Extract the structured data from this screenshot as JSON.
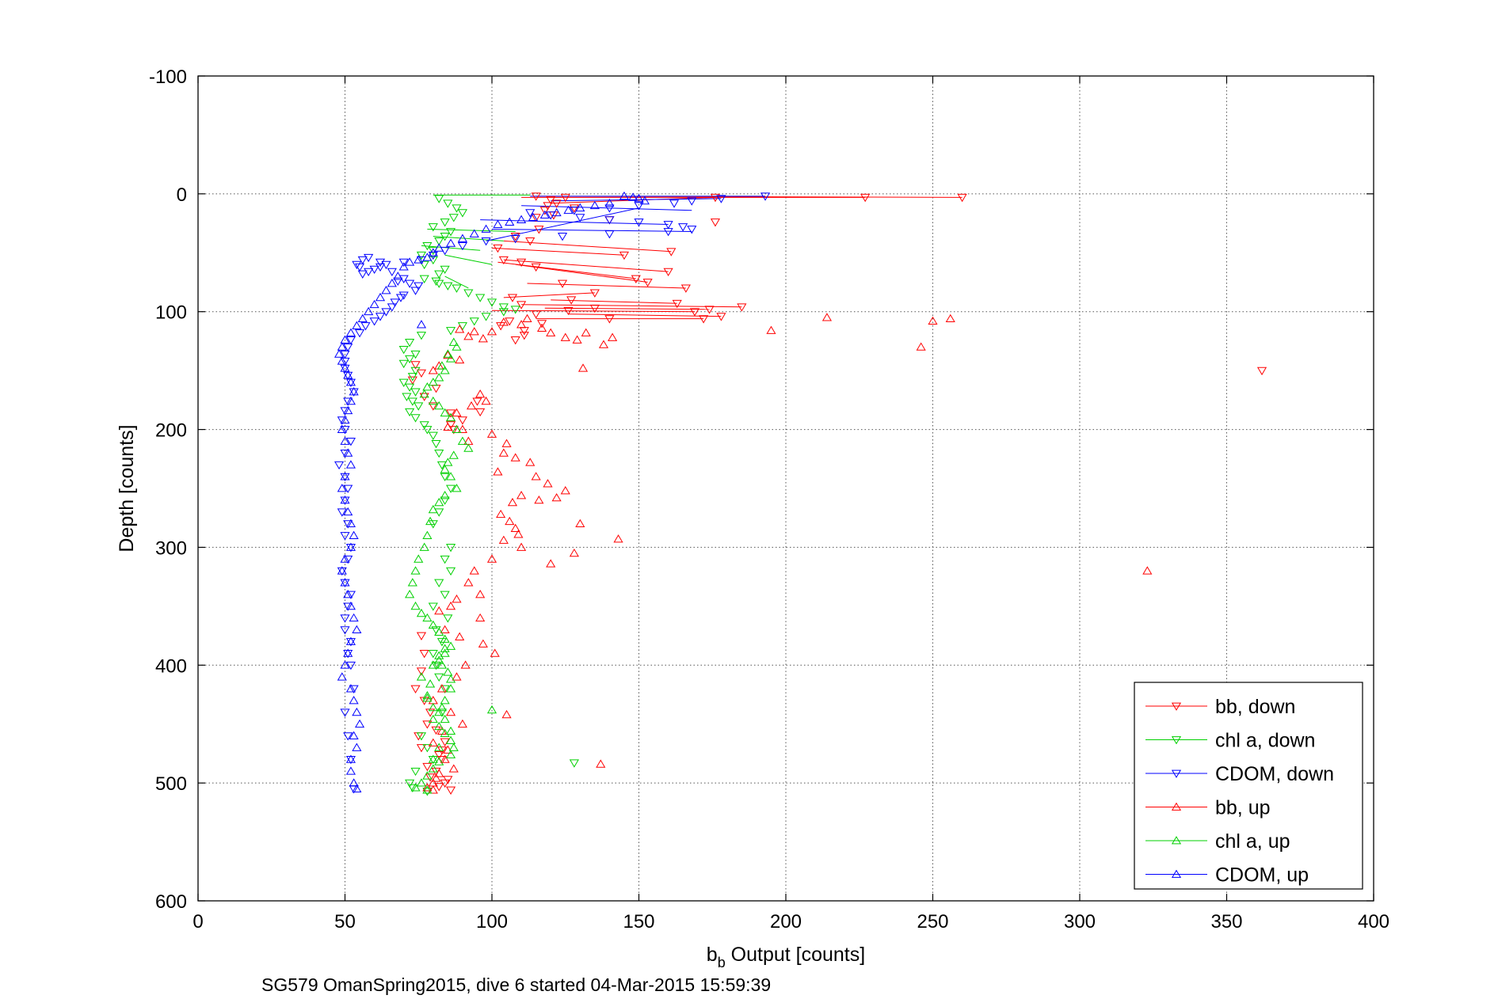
{
  "chart_data": {
    "type": "scatter",
    "title": "",
    "caption": "SG579 OmanSpring2015, dive 6 started 04-Mar-2015 15:59:39",
    "xlabel": {
      "main": "b",
      "sub": "b",
      "rest": " Output [counts]"
    },
    "ylabel": "Depth [counts]",
    "xlim": [
      0,
      400
    ],
    "ylim": [
      -100,
      600
    ],
    "y_reversed": true,
    "grid": true,
    "legend_position": "bottom-right",
    "x_ticks": [
      "0",
      "50",
      "100",
      "150",
      "200",
      "250",
      "300",
      "350",
      "400"
    ],
    "y_ticks": [
      "-100",
      "0",
      "100",
      "200",
      "300",
      "400",
      "500",
      "600"
    ],
    "series": [
      {
        "name": "bb, down",
        "color": "#ff0000",
        "marker": "triangle-down",
        "x": [
          115,
          125,
          120,
          176,
          260,
          227,
          122,
          119,
          128,
          118,
          115,
          121,
          140,
          176,
          116,
          108,
          113,
          102,
          161,
          145,
          104,
          110,
          115,
          160,
          149,
          124,
          153,
          166,
          135,
          107,
          127,
          110,
          135,
          126,
          115,
          140,
          163,
          185,
          174,
          169,
          178,
          172,
          117,
          106,
          103,
          111,
          111,
          108,
          362,
          74,
          76,
          73,
          81,
          77,
          80,
          86,
          90,
          86,
          95,
          96,
          87,
          76,
          77,
          76,
          74,
          77,
          79,
          78,
          81,
          75,
          84,
          76,
          83,
          82,
          83,
          78,
          81,
          79,
          85,
          84,
          82,
          86
        ],
        "y": [
          2,
          3,
          5,
          3,
          3,
          3,
          8,
          10,
          12,
          14,
          20,
          18,
          22,
          24,
          30,
          36,
          40,
          46,
          49,
          52,
          56,
          58,
          62,
          66,
          72,
          76,
          75,
          80,
          84,
          88,
          90,
          94,
          97,
          99,
          102,
          106,
          93,
          96,
          98,
          100,
          104,
          106,
          110,
          108,
          112,
          116,
          120,
          124,
          150,
          145,
          152,
          158,
          165,
          172,
          180,
          186,
          192,
          196,
          176,
          185,
          200,
          375,
          390,
          405,
          420,
          430,
          440,
          450,
          455,
          460,
          465,
          470,
          472,
          476,
          480,
          486,
          490,
          495,
          497,
          500,
          503,
          506
        ]
      },
      {
        "name": "chl a, down",
        "color": "#00d000",
        "marker": "triangle-down",
        "x": [
          82,
          85,
          88,
          90,
          87,
          84,
          80,
          86,
          84,
          82,
          78,
          80,
          76,
          80,
          77,
          84,
          82,
          77,
          81,
          82,
          85,
          88,
          92,
          96,
          100,
          104,
          108,
          104,
          98,
          94,
          90,
          86,
          76,
          72,
          70,
          74,
          72,
          70,
          74,
          73,
          70,
          72,
          74,
          71,
          73,
          75,
          72,
          74,
          77,
          78,
          80,
          81,
          82,
          83,
          84,
          86,
          84,
          82,
          80,
          86,
          84,
          86,
          82,
          84,
          80,
          85,
          81,
          83,
          80,
          81,
          82,
          84,
          83,
          128,
          76,
          78,
          80,
          74,
          72,
          73,
          78
        ],
        "y": [
          4,
          8,
          12,
          16,
          20,
          24,
          28,
          32,
          36,
          40,
          44,
          48,
          52,
          56,
          60,
          64,
          68,
          72,
          74,
          76,
          78,
          80,
          84,
          88,
          92,
          96,
          98,
          100,
          104,
          108,
          112,
          116,
          120,
          126,
          132,
          136,
          140,
          144,
          150,
          155,
          160,
          164,
          168,
          172,
          176,
          180,
          185,
          190,
          196,
          200,
          205,
          212,
          220,
          230,
          240,
          250,
          260,
          270,
          280,
          300,
          310,
          320,
          330,
          340,
          350,
          360,
          370,
          380,
          390,
          400,
          410,
          420,
          440,
          483,
          460,
          470,
          480,
          490,
          500,
          504,
          507
        ]
      },
      {
        "name": "CDOM, down",
        "color": "#0000ff",
        "marker": "triangle-down",
        "x": [
          193,
          178,
          168,
          162,
          150,
          140,
          128,
          113,
          120,
          130,
          140,
          150,
          160,
          165,
          168,
          160,
          140,
          124,
          108,
          98,
          90,
          84,
          80,
          76,
          70,
          64,
          62,
          60,
          58,
          56,
          55,
          54,
          56,
          58,
          62,
          66,
          70,
          68,
          72,
          75,
          74,
          70,
          69,
          67,
          66,
          64,
          62,
          60,
          57,
          55,
          52,
          51,
          50,
          50,
          50,
          51,
          52,
          53,
          51,
          50,
          49,
          50,
          52,
          50,
          48,
          50,
          51,
          50,
          49,
          51,
          50,
          52,
          51,
          49,
          50,
          52,
          51,
          50,
          50,
          52,
          51,
          52,
          53,
          50,
          51,
          52,
          53
        ],
        "y": [
          2,
          4,
          6,
          8,
          10,
          12,
          14,
          16,
          18,
          20,
          22,
          24,
          26,
          28,
          30,
          32,
          34,
          36,
          38,
          40,
          44,
          48,
          52,
          56,
          58,
          60,
          62,
          64,
          66,
          68,
          62,
          60,
          56,
          54,
          58,
          66,
          72,
          74,
          76,
          78,
          82,
          86,
          88,
          92,
          96,
          100,
          104,
          108,
          112,
          118,
          124,
          130,
          136,
          142,
          148,
          154,
          160,
          168,
          176,
          184,
          192,
          200,
          210,
          220,
          230,
          240,
          250,
          260,
          270,
          280,
          290,
          300,
          310,
          320,
          330,
          340,
          350,
          360,
          370,
          380,
          390,
          400,
          420,
          440,
          460,
          480,
          505
        ]
      },
      {
        "name": "bb, up",
        "color": "#ff0000",
        "marker": "triangle-up",
        "x": [
          214,
          250,
          256,
          246,
          195,
          141,
          138,
          132,
          129,
          125,
          120,
          117,
          131,
          110,
          112,
          104,
          100,
          92,
          89,
          94,
          97,
          85,
          89,
          82,
          80,
          96,
          98,
          93,
          88,
          86,
          85,
          90,
          92,
          100,
          105,
          104,
          108,
          113,
          102,
          115,
          119,
          110,
          107,
          122,
          125,
          116,
          103,
          106,
          108,
          109,
          130,
          143,
          128,
          120,
          104,
          110,
          100,
          94,
          92,
          96,
          88,
          86,
          82,
          96,
          84,
          89,
          97,
          101,
          91,
          88,
          83,
          80,
          86,
          90,
          105,
          323,
          83,
          80,
          85,
          84,
          87,
          82,
          81,
          80,
          78,
          80,
          137
        ],
        "y": [
          105,
          108,
          106,
          130,
          116,
          122,
          128,
          118,
          124,
          122,
          118,
          114,
          148,
          111,
          106,
          109,
          117,
          121,
          115,
          117,
          123,
          137,
          141,
          146,
          150,
          170,
          176,
          180,
          186,
          190,
          198,
          200,
          210,
          204,
          212,
          220,
          224,
          228,
          236,
          240,
          246,
          256,
          262,
          258,
          252,
          260,
          272,
          278,
          284,
          289,
          280,
          293,
          305,
          314,
          294,
          300,
          310,
          320,
          330,
          340,
          344,
          350,
          354,
          360,
          370,
          376,
          382,
          390,
          400,
          410,
          420,
          430,
          440,
          450,
          442,
          320,
          456,
          466,
          472,
          480,
          488,
          492,
          496,
          500,
          504,
          506,
          484
        ]
      },
      {
        "name": "chl a, up",
        "color": "#00d000",
        "marker": "triangle-up",
        "x": [
          87,
          88,
          85,
          86,
          83,
          84,
          82,
          80,
          78,
          77,
          80,
          82,
          84,
          86,
          88,
          90,
          92,
          87,
          85,
          84,
          86,
          88,
          84,
          82,
          80,
          79,
          78,
          77,
          75,
          74,
          73,
          72,
          74,
          76,
          78,
          80,
          82,
          84,
          86,
          84,
          82,
          83,
          85,
          86,
          86,
          84,
          83,
          82,
          80,
          82,
          84,
          86,
          87,
          86,
          82,
          80,
          78,
          76,
          74,
          78,
          80,
          82,
          86,
          84,
          80,
          78,
          100,
          79,
          78,
          76,
          80,
          82,
          84
        ],
        "y": [
          126,
          130,
          136,
          140,
          146,
          150,
          156,
          160,
          164,
          170,
          176,
          180,
          186,
          190,
          200,
          210,
          216,
          222,
          228,
          234,
          240,
          250,
          256,
          262,
          268,
          278,
          290,
          300,
          310,
          320,
          330,
          340,
          350,
          356,
          360,
          366,
          372,
          378,
          384,
          390,
          396,
          400,
          406,
          412,
          420,
          430,
          436,
          440,
          446,
          452,
          458,
          464,
          470,
          476,
          482,
          488,
          494,
          500,
          504,
          506,
          480,
          470,
          456,
          446,
          436,
          428,
          438,
          416,
          426,
          410,
          400,
          392,
          386
        ]
      },
      {
        "name": "CDOM, up",
        "color": "#0000ff",
        "marker": "triangle-up",
        "x": [
          145,
          148,
          150,
          152,
          140,
          135,
          130,
          126,
          122,
          118,
          114,
          110,
          106,
          102,
          98,
          94,
          90,
          86,
          82,
          80,
          78,
          75,
          72,
          70,
          68,
          66,
          64,
          62,
          60,
          58,
          56,
          54,
          52,
          50,
          49,
          48,
          49,
          50,
          51,
          52,
          53,
          52,
          51,
          50,
          49,
          50,
          51,
          52,
          50,
          49,
          50,
          51,
          52,
          53,
          52,
          50,
          49,
          50,
          51,
          52,
          53,
          54,
          52,
          51,
          50,
          49,
          52,
          53,
          54,
          55,
          53,
          54,
          52,
          52,
          53,
          76,
          54
        ],
        "y": [
          2,
          3,
          4,
          6,
          8,
          10,
          12,
          14,
          16,
          18,
          20,
          22,
          24,
          26,
          30,
          34,
          38,
          42,
          46,
          50,
          54,
          56,
          58,
          62,
          70,
          76,
          82,
          88,
          94,
          100,
          106,
          112,
          118,
          124,
          130,
          136,
          142,
          148,
          154,
          160,
          168,
          176,
          184,
          192,
          200,
          210,
          220,
          230,
          240,
          250,
          260,
          270,
          280,
          290,
          300,
          310,
          320,
          330,
          340,
          350,
          360,
          370,
          380,
          390,
          400,
          410,
          420,
          430,
          440,
          450,
          460,
          470,
          480,
          490,
          500,
          111,
          505
        ]
      }
    ],
    "down_lines": {
      "color": "#ff0000",
      "pairs": [
        [
          [
            115,
            2
          ],
          [
            260,
            3
          ]
        ],
        [
          [
            110,
            3
          ],
          [
            227,
            3
          ]
        ],
        [
          [
            120,
            8
          ],
          [
            176,
            3
          ]
        ],
        [
          [
            104,
            40
          ],
          [
            161,
            49
          ]
        ],
        [
          [
            100,
            46
          ],
          [
            145,
            52
          ]
        ],
        [
          [
            104,
            56
          ],
          [
            160,
            66
          ]
        ],
        [
          [
            102,
            58
          ],
          [
            149,
            72
          ]
        ],
        [
          [
            108,
            60
          ],
          [
            153,
            75
          ]
        ],
        [
          [
            112,
            76
          ],
          [
            166,
            80
          ]
        ],
        [
          [
            104,
            88
          ],
          [
            135,
            84
          ]
        ],
        [
          [
            120,
            90
          ],
          [
            163,
            93
          ]
        ],
        [
          [
            110,
            94
          ],
          [
            185,
            96
          ]
        ],
        [
          [
            118,
            97
          ],
          [
            174,
            98
          ]
        ],
        [
          [
            100,
            99
          ],
          [
            169,
            100
          ]
        ],
        [
          [
            126,
            102
          ],
          [
            178,
            104
          ]
        ],
        [
          [
            115,
            106
          ],
          [
            172,
            106
          ]
        ]
      ]
    },
    "green_lines": {
      "color": "#00d000",
      "pairs": [
        [
          [
            80,
            1
          ],
          [
            113,
            1
          ]
        ],
        [
          [
            78,
            30
          ],
          [
            108,
            32
          ]
        ],
        [
          [
            80,
            36
          ],
          [
            104,
            40
          ]
        ],
        [
          [
            76,
            44
          ],
          [
            96,
            48
          ]
        ],
        [
          [
            84,
            52
          ],
          [
            100,
            60
          ]
        ],
        [
          [
            84,
            70
          ],
          [
            92,
            80
          ]
        ]
      ]
    },
    "blue_lines": {
      "color": "#0000ff",
      "pairs": [
        [
          [
            113,
            2
          ],
          [
            193,
            2
          ]
        ],
        [
          [
            120,
            6
          ],
          [
            178,
            4
          ]
        ],
        [
          [
            110,
            10
          ],
          [
            168,
            14
          ]
        ],
        [
          [
            96,
            22
          ],
          [
            160,
            26
          ]
        ],
        [
          [
            100,
            30
          ],
          [
            168,
            32
          ]
        ],
        [
          [
            98,
            40
          ],
          [
            150,
            12
          ]
        ]
      ]
    }
  }
}
